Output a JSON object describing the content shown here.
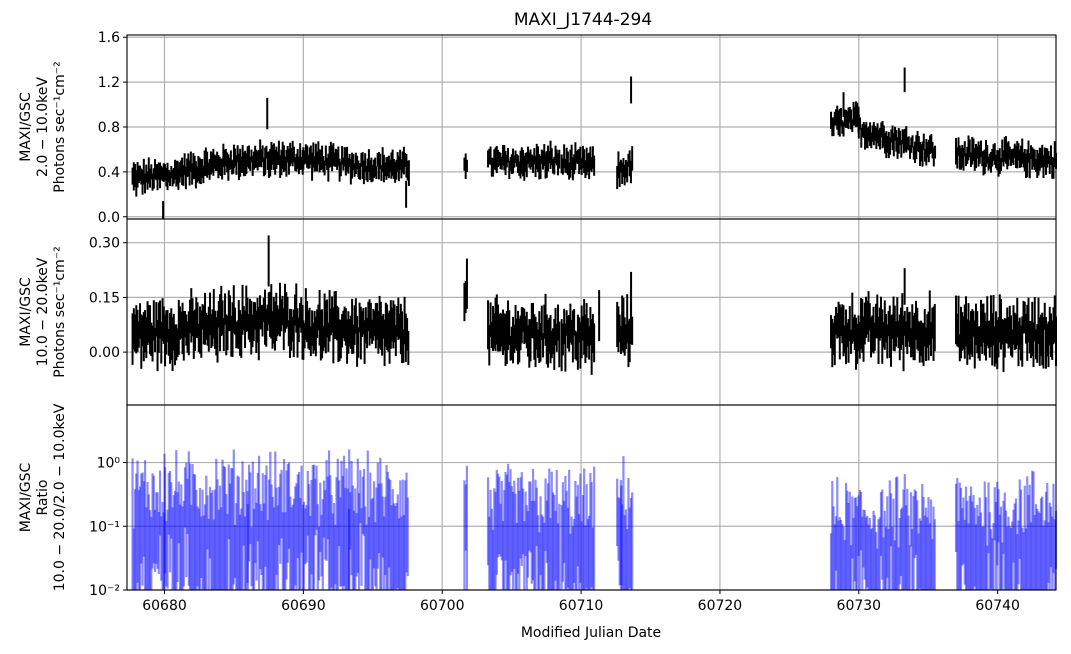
{
  "chart_data": {
    "type": "errorbar",
    "title": "MAXI_J1744-294",
    "xlabel": "Modified Julian Date",
    "xlim": [
      60677.3,
      60744.2
    ],
    "x_ticks": [
      60680,
      60690,
      60700,
      60710,
      60720,
      60730,
      60740
    ],
    "grid": true,
    "colors": {
      "panel1": "#000000",
      "panel2": "#000000",
      "ratio": "#0000ff"
    },
    "observation_windows": [
      [
        60677.7,
        60697.6
      ],
      [
        60701.6,
        60701.8
      ],
      [
        60703.3,
        60708.5
      ],
      [
        60708.6,
        60711.0
      ],
      [
        60712.6,
        60713.7
      ],
      [
        60728.0,
        60735.5
      ],
      [
        60737.0,
        60744.2
      ]
    ],
    "panels": [
      {
        "id": "soft",
        "ylabel": [
          "MAXI/GSC",
          "2.0 − 10.0keV",
          "Photons sec⁻¹cm⁻²"
        ],
        "ylim": [
          -0.02,
          1.62
        ],
        "scale": "linear",
        "y_ticks": [
          0.0,
          0.4,
          0.8,
          1.2,
          1.6
        ],
        "y_tick_labels": [
          "0.0",
          "0.4",
          "0.8",
          "1.2",
          "1.6"
        ],
        "segments": [
          {
            "x0": 60677.7,
            "x1": 60681.0,
            "y0": 0.34,
            "y1": 0.38
          },
          {
            "x0": 60681.0,
            "x1": 60685.0,
            "y0": 0.4,
            "y1": 0.5
          },
          {
            "x0": 60685.0,
            "x1": 60690.0,
            "y0": 0.5,
            "y1": 0.52
          },
          {
            "x0": 60690.0,
            "x1": 60694.0,
            "y0": 0.52,
            "y1": 0.46
          },
          {
            "x0": 60694.0,
            "x1": 60697.6,
            "y0": 0.46,
            "y1": 0.44
          },
          {
            "x0": 60701.6,
            "x1": 60701.8,
            "y0": 0.5,
            "y1": 0.5
          },
          {
            "x0": 60703.3,
            "x1": 60708.5,
            "y0": 0.48,
            "y1": 0.5
          },
          {
            "x0": 60708.6,
            "x1": 60711.0,
            "y0": 0.48,
            "y1": 0.46
          },
          {
            "x0": 60712.6,
            "x1": 60713.7,
            "y0": 0.4,
            "y1": 0.46
          },
          {
            "x0": 60728.0,
            "x1": 60730.0,
            "y0": 0.82,
            "y1": 0.86
          },
          {
            "x0": 60730.0,
            "x1": 60735.5,
            "y0": 0.78,
            "y1": 0.58
          },
          {
            "x0": 60737.0,
            "x1": 60744.2,
            "y0": 0.56,
            "y1": 0.5
          }
        ],
        "noise": 0.07,
        "err": 0.09,
        "outliers": [
          {
            "x": 60687.4,
            "y": 0.92,
            "e": 0.14
          },
          {
            "x": 60713.6,
            "y": 1.13,
            "e": 0.12
          },
          {
            "x": 60733.3,
            "y": 1.22,
            "e": 0.11
          },
          {
            "x": 60679.9,
            "y": 0.06,
            "e": 0.08
          },
          {
            "x": 60697.4,
            "y": 0.2,
            "e": 0.12
          },
          {
            "x": 60728.9,
            "y": 1.0,
            "e": 0.11
          }
        ]
      },
      {
        "id": "hard",
        "ylabel": [
          "MAXI/GSC",
          "10.0 − 20.0keV",
          "Photons sec⁻¹cm⁻²"
        ],
        "ylim": [
          -0.145,
          0.365
        ],
        "scale": "linear",
        "y_ticks": [
          0.0,
          0.15,
          0.3
        ],
        "y_tick_labels": [
          "0.00",
          "0.15",
          "0.30"
        ],
        "segments": [
          {
            "x0": 60677.7,
            "x1": 60684.0,
            "y0": 0.05,
            "y1": 0.07
          },
          {
            "x0": 60684.0,
            "x1": 60690.0,
            "y0": 0.08,
            "y1": 0.09
          },
          {
            "x0": 60690.0,
            "x1": 60697.6,
            "y0": 0.07,
            "y1": 0.05
          },
          {
            "x0": 60701.6,
            "x1": 60701.8,
            "y0": 0.17,
            "y1": 0.17
          },
          {
            "x0": 60703.3,
            "x1": 60708.5,
            "y0": 0.05,
            "y1": 0.05
          },
          {
            "x0": 60708.6,
            "x1": 60711.0,
            "y0": 0.05,
            "y1": 0.04
          },
          {
            "x0": 60712.6,
            "x1": 60713.7,
            "y0": 0.05,
            "y1": 0.06
          },
          {
            "x0": 60728.0,
            "x1": 60735.5,
            "y0": 0.06,
            "y1": 0.06
          },
          {
            "x0": 60737.0,
            "x1": 60744.2,
            "y0": 0.05,
            "y1": 0.06
          }
        ],
        "noise": 0.04,
        "err": 0.055,
        "outliers": [
          {
            "x": 60687.5,
            "y": 0.25,
            "e": 0.07
          },
          {
            "x": 60713.6,
            "y": 0.15,
            "e": 0.07
          },
          {
            "x": 60711.3,
            "y": 0.1,
            "e": 0.07
          },
          {
            "x": 60733.3,
            "y": 0.18,
            "e": 0.05
          }
        ]
      },
      {
        "id": "ratio",
        "ylabel": [
          "MAXI/GSC",
          "Ratio",
          "10.0 − 20.0/2.0 − 10.0keV"
        ],
        "ylim": [
          0.01,
          8.0
        ],
        "scale": "log",
        "y_ticks": [
          0.01,
          0.1,
          1.0
        ],
        "y_tick_labels": [
          "10⁻²",
          "10⁻¹",
          "10⁰"
        ],
        "segments": [
          {
            "x0": 60677.7,
            "x1": 60686.0,
            "y0": 0.18,
            "y1": 0.2
          },
          {
            "x0": 60686.0,
            "x1": 60697.6,
            "y0": 0.2,
            "y1": 0.16
          },
          {
            "x0": 60701.6,
            "x1": 60701.8,
            "y0": 0.3,
            "y1": 0.3
          },
          {
            "x0": 60703.3,
            "x1": 60708.5,
            "y0": 0.12,
            "y1": 0.12
          },
          {
            "x0": 60708.6,
            "x1": 60711.0,
            "y0": 0.11,
            "y1": 0.1
          },
          {
            "x0": 60712.6,
            "x1": 60713.7,
            "y0": 0.15,
            "y1": 0.15
          },
          {
            "x0": 60728.0,
            "x1": 60735.5,
            "y0": 0.07,
            "y1": 0.08
          },
          {
            "x0": 60737.0,
            "x1": 60744.2,
            "y0": 0.09,
            "y1": 0.11
          }
        ],
        "noise": 0.5,
        "err": 0.6,
        "outliers": [
          {
            "x": 60680.0,
            "y": 0.6,
            "e": 0.9
          },
          {
            "x": 60693.3,
            "y": 0.7,
            "e": 0.9
          },
          {
            "x": 60712.9,
            "y": 0.25,
            "e": 0.6
          }
        ]
      }
    ]
  }
}
